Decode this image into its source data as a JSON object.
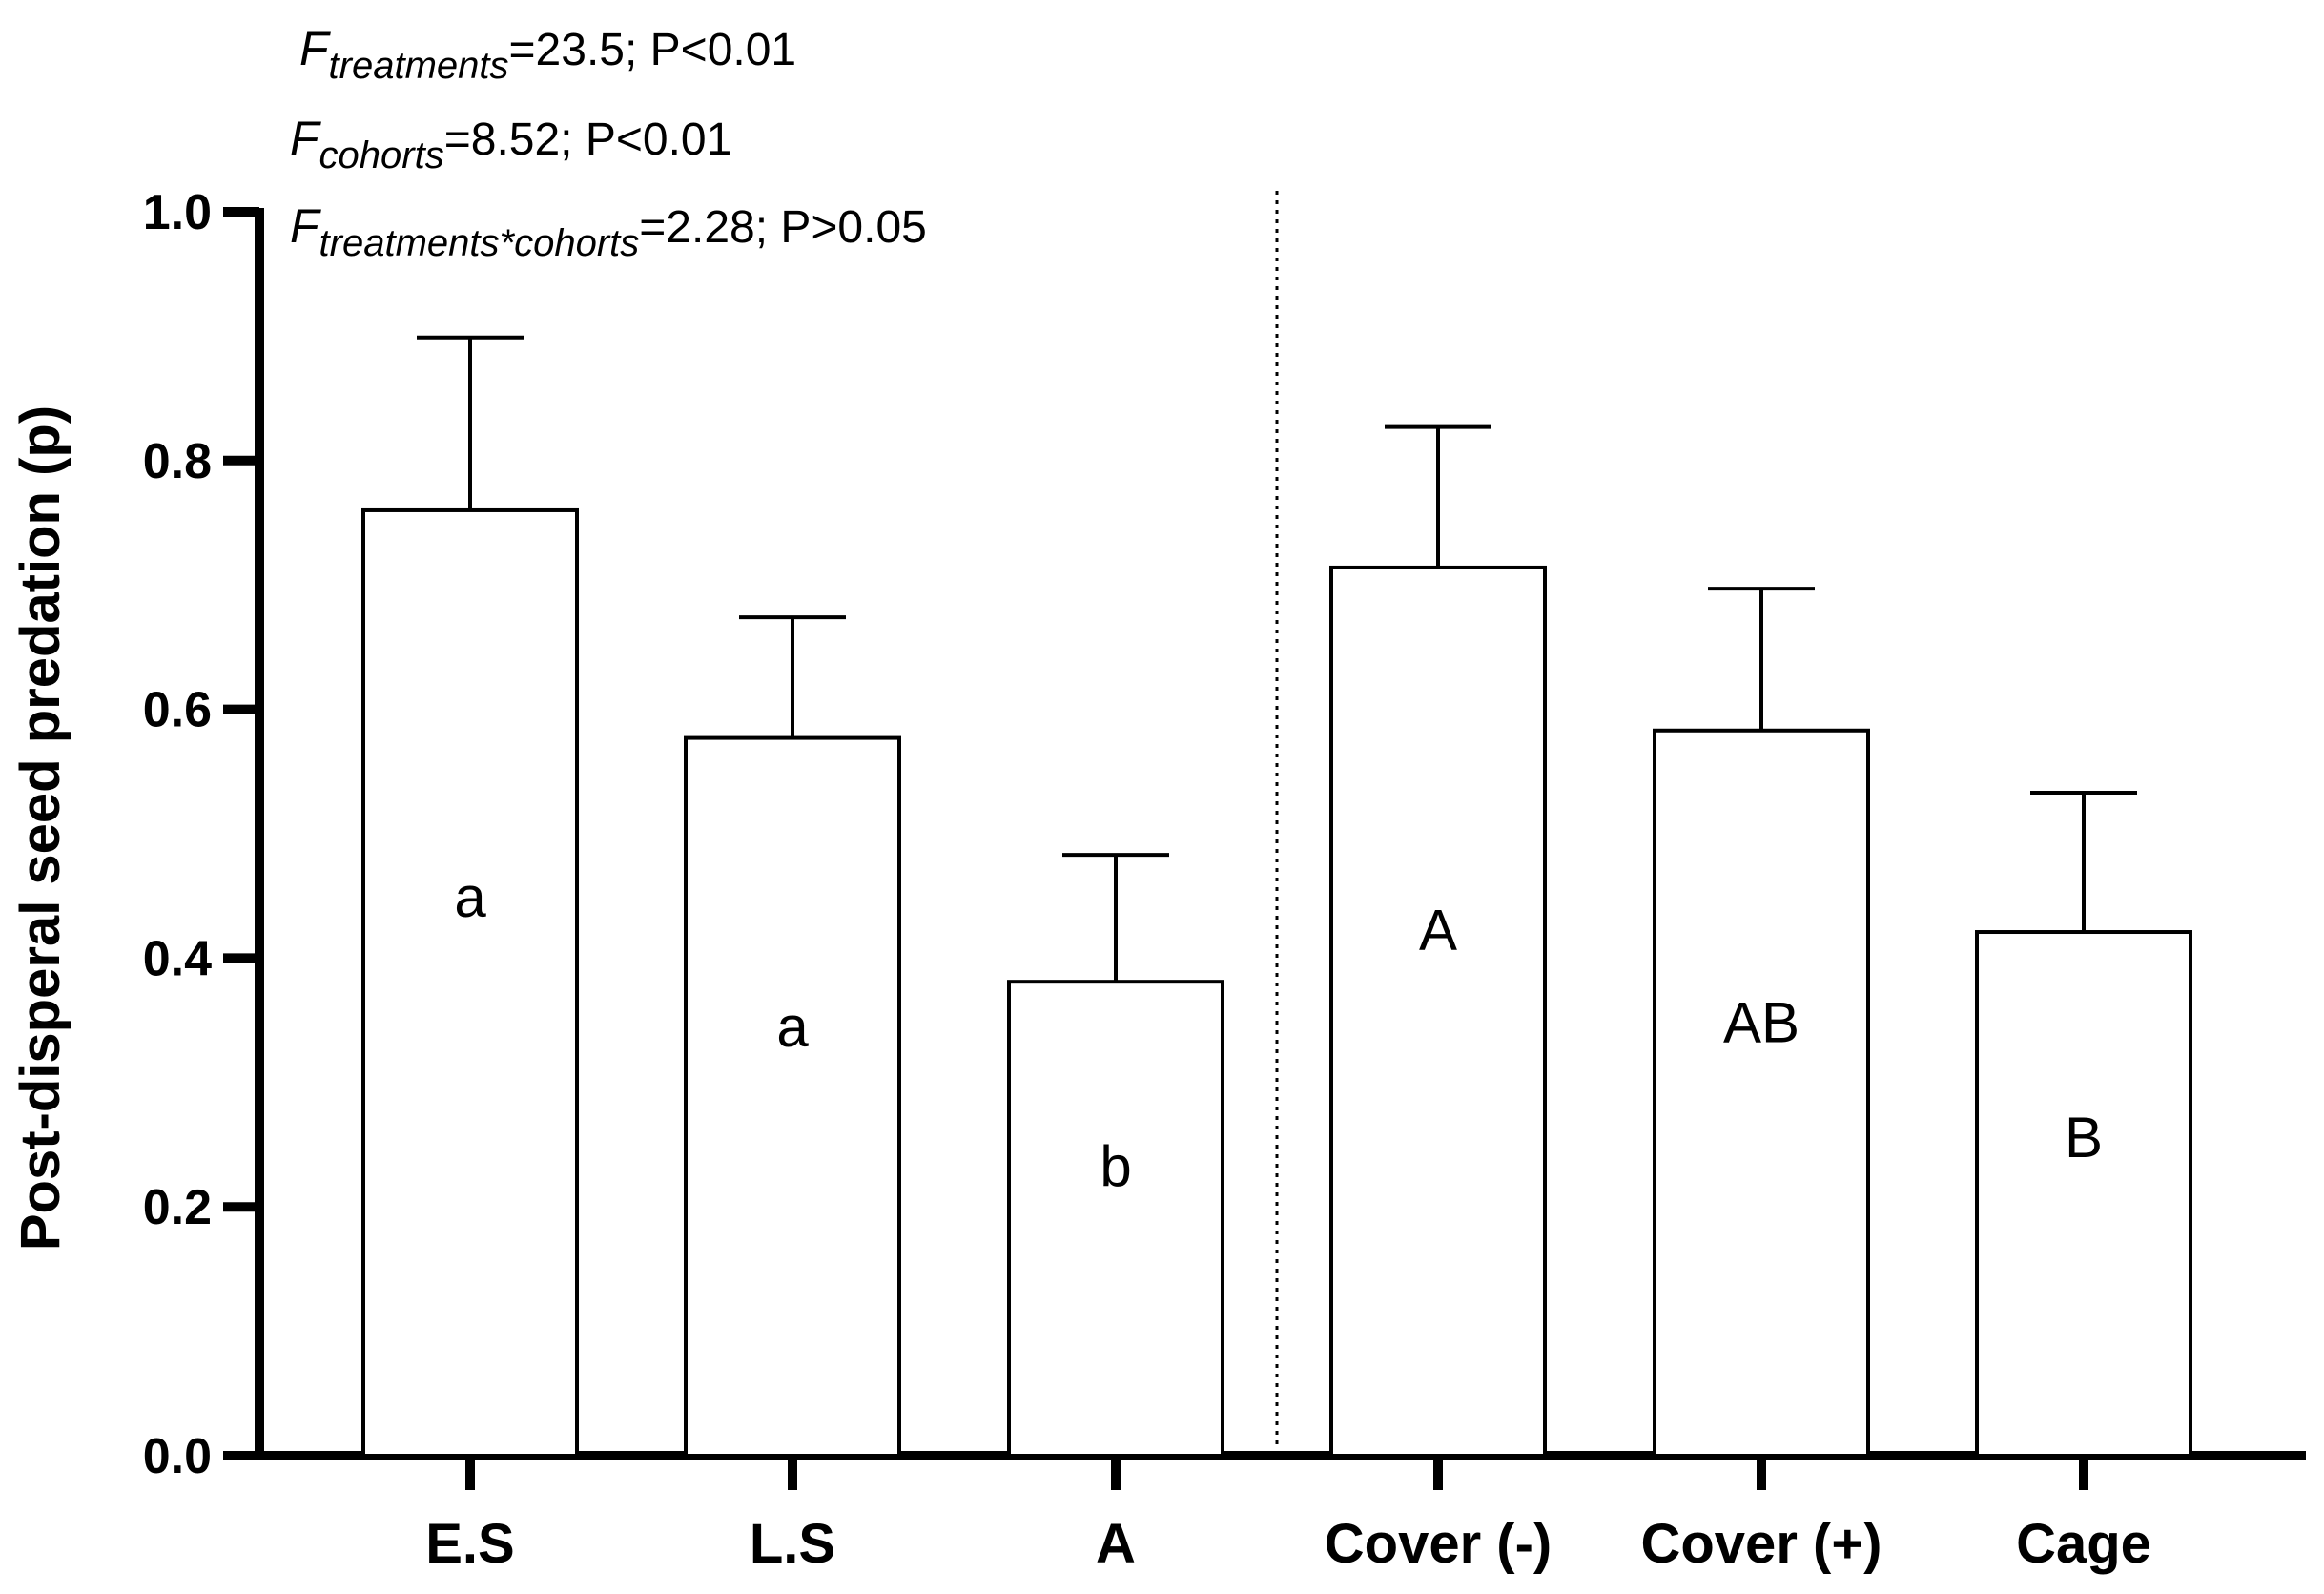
{
  "chart_data": {
    "type": "bar",
    "categories": [
      "E.S",
      "L.S",
      "A",
      "Cover (-)",
      "Cover (+)",
      "Cage"
    ],
    "values": [
      0.76,
      0.577,
      0.381,
      0.714,
      0.583,
      0.421
    ],
    "error_upper": [
      0.899,
      0.674,
      0.483,
      0.827,
      0.697,
      0.533
    ],
    "significance_letters": [
      "a",
      "a",
      "b",
      "A",
      "AB",
      "B"
    ],
    "ylabel": "Post-disperal seed predation (p)",
    "ylim": [
      0,
      1.0
    ],
    "yticks": [
      "0.0",
      "0.2",
      "0.4",
      "0.6",
      "0.8",
      "1.0"
    ],
    "group_divider_after_index": 2,
    "grid": false,
    "bar_fill": "#ffffff",
    "bar_stroke": "#000000",
    "stats": [
      {
        "prefix": "F",
        "subscript": "treatments",
        "text": "=23.5; P<0.01"
      },
      {
        "prefix": "F",
        "subscript": "cohorts",
        "text": "=8.52; P<0.01"
      },
      {
        "prefix": "F",
        "subscript": "treatments*cohorts",
        "text": "=2.28; P>0.05"
      }
    ]
  }
}
